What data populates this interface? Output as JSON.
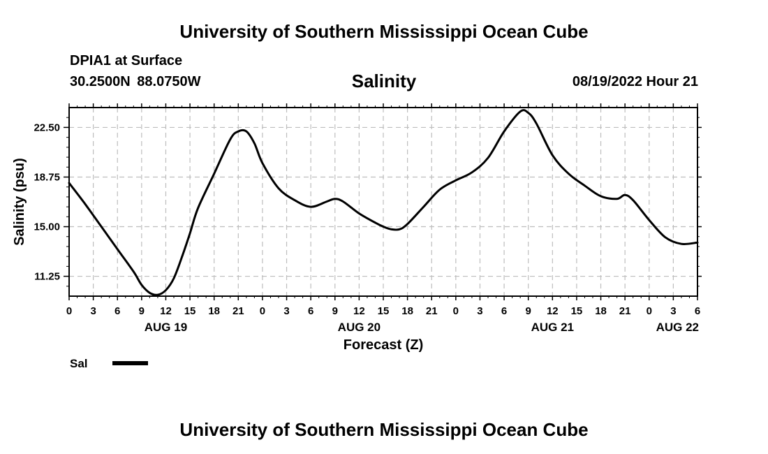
{
  "header": {
    "title": "University of Southern Mississippi Ocean Cube",
    "station": "DPIA1 at Surface",
    "coords": "30.2500N  88.0750W",
    "variable": "Salinity",
    "datetime": "08/19/2022 Hour 21"
  },
  "footer": {
    "title": "University of Southern Mississippi Ocean Cube"
  },
  "chart_data": {
    "type": "line",
    "title": "Salinity",
    "xlabel": "Forecast (Z)",
    "ylabel": "Salinity (psu)",
    "xlim": [
      0,
      78
    ],
    "ylim": [
      9.75,
      24.0
    ],
    "x_ticks": [
      0,
      3,
      6,
      9,
      12,
      15,
      18,
      21,
      24,
      27,
      30,
      33,
      36,
      39,
      42,
      45,
      48,
      51,
      54,
      57,
      60,
      63,
      66,
      69,
      72,
      75,
      78
    ],
    "x_tick_labels": [
      "0",
      "3",
      "6",
      "9",
      "12",
      "15",
      "18",
      "21",
      "0",
      "3",
      "6",
      "9",
      "12",
      "15",
      "18",
      "21",
      "0",
      "3",
      "6",
      "9",
      "12",
      "15",
      "18",
      "21",
      "0",
      "3",
      "6"
    ],
    "y_ticks": [
      11.25,
      15.0,
      18.75,
      22.5
    ],
    "y_tick_labels": [
      "11.25",
      "15.00",
      "18.75",
      "22.50"
    ],
    "date_labels": [
      {
        "x": 12,
        "label": "AUG 19"
      },
      {
        "x": 36,
        "label": "AUG 20"
      },
      {
        "x": 60,
        "label": "AUG 21"
      },
      {
        "x": 78,
        "label": "AUG 22"
      }
    ],
    "grid": true,
    "legend": "bottom-left",
    "series": [
      {
        "name": "Sal",
        "x": [
          0,
          2,
          4,
          6,
          8,
          9,
          10,
          11,
          12,
          13,
          14,
          15,
          16,
          18,
          20,
          21,
          22,
          23,
          24,
          26,
          28,
          30,
          32,
          33,
          34,
          36,
          38,
          39,
          40,
          41,
          42,
          44,
          46,
          48,
          50,
          52,
          54,
          56,
          57,
          58,
          60,
          62,
          64,
          66,
          68,
          69,
          70,
          72,
          74,
          76,
          78
        ],
        "values": [
          18.3,
          16.7,
          15.0,
          13.3,
          11.6,
          10.6,
          10.0,
          9.85,
          10.2,
          11.1,
          12.7,
          14.5,
          16.4,
          19.0,
          21.6,
          22.2,
          22.2,
          21.3,
          19.8,
          17.9,
          17.0,
          16.5,
          16.9,
          17.1,
          16.9,
          16.0,
          15.3,
          15.0,
          14.8,
          14.8,
          15.2,
          16.5,
          17.8,
          18.5,
          19.1,
          20.2,
          22.2,
          23.7,
          23.6,
          22.8,
          20.4,
          19.0,
          18.1,
          17.3,
          17.1,
          17.4,
          17.0,
          15.5,
          14.2,
          13.7,
          13.8
        ]
      }
    ]
  }
}
